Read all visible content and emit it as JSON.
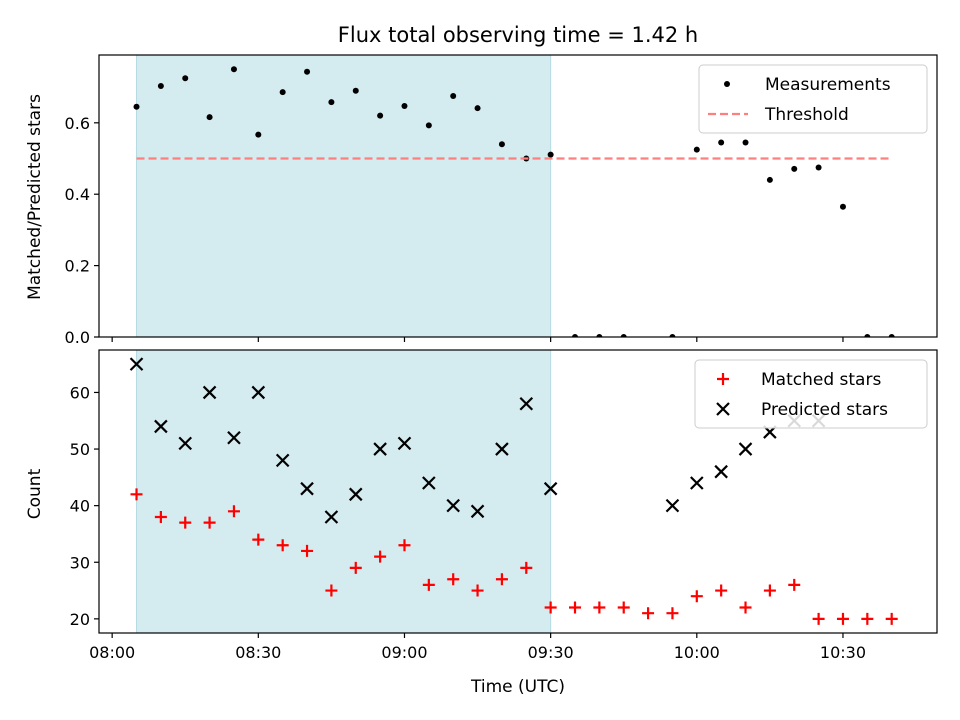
{
  "chart_data": {
    "title": "Flux total observing time = 1.42 h",
    "xlabel": "Time (UTC)",
    "x_tick_labels": [
      "08:00",
      "08:30",
      "09:00",
      "09:30",
      "10:00",
      "10:30"
    ],
    "x_ticks_minutes": [
      480,
      510,
      540,
      570,
      600,
      630
    ],
    "xlim_minutes": [
      477.3,
      649.3
    ],
    "shaded_interval_minutes": [
      485,
      570
    ],
    "shade_color": "#d4ebf0",
    "panels": [
      {
        "type": "scatter",
        "ylabel": "Matched/Predicted stars",
        "ylim": [
          0,
          0.79
        ],
        "y_ticks": [
          0.0,
          0.2,
          0.4,
          0.6
        ],
        "y_tick_labels": [
          "0.0",
          "0.2",
          "0.4",
          "0.6"
        ],
        "legend_position": "top-right",
        "series": [
          {
            "name": "Measurements",
            "marker": "dot",
            "color": "#000000",
            "x": [
              485,
              490,
              495,
              500,
              505,
              510,
              515,
              520,
              525,
              530,
              535,
              540,
              545,
              550,
              555,
              560,
              565,
              570,
              575,
              580,
              585,
              595,
              600,
              605,
              610,
              615,
              620,
              625,
              630,
              635,
              640
            ],
            "y": [
              0.645,
              0.703,
              0.725,
              0.616,
              0.75,
              0.567,
              0.686,
              0.743,
              0.658,
              0.69,
              0.62,
              0.647,
              0.593,
              0.675,
              0.641,
              0.54,
              0.5,
              0.511,
              0.0,
              0.0,
              0.0,
              0.0,
              0.525,
              0.545,
              0.545,
              0.44,
              0.471,
              0.475,
              0.365,
              0.0,
              0.0
            ]
          },
          {
            "name": "Threshold",
            "marker": "dashed-line",
            "color": "#ff7f7f",
            "x": [
              485,
              640
            ],
            "y": [
              0.5,
              0.5
            ]
          }
        ]
      },
      {
        "type": "scatter",
        "ylabel": "Count",
        "ylim": [
          17.5,
          67.5
        ],
        "y_ticks": [
          20,
          30,
          40,
          50,
          60
        ],
        "y_tick_labels": [
          "20",
          "30",
          "40",
          "50",
          "60"
        ],
        "legend_position": "top-right",
        "series": [
          {
            "name": "Matched stars",
            "marker": "plus",
            "color": "#ff0000",
            "x": [
              485,
              490,
              495,
              500,
              505,
              510,
              515,
              520,
              525,
              530,
              535,
              540,
              545,
              550,
              555,
              560,
              565,
              570,
              575,
              580,
              585,
              590,
              595,
              600,
              605,
              610,
              615,
              620,
              625,
              630,
              635,
              640
            ],
            "y": [
              42,
              38,
              37,
              37,
              39,
              34,
              33,
              32,
              25,
              29,
              31,
              33,
              26,
              27,
              25,
              27,
              29,
              22,
              22,
              22,
              22,
              21,
              21,
              24,
              25,
              22,
              25,
              26,
              20,
              20,
              20,
              20
            ]
          },
          {
            "name": "Predicted stars",
            "marker": "x",
            "color": "#000000",
            "x": [
              485,
              490,
              495,
              500,
              505,
              510,
              515,
              520,
              525,
              530,
              535,
              540,
              545,
              550,
              555,
              560,
              565,
              570,
              595,
              600,
              605,
              610,
              615,
              620,
              625
            ],
            "y": [
              65,
              54,
              51,
              60,
              52,
              60,
              48,
              43,
              38,
              42,
              50,
              51,
              44,
              40,
              39,
              50,
              58,
              43,
              40,
              44,
              46,
              50,
              53,
              55,
              55
            ]
          }
        ]
      }
    ]
  }
}
